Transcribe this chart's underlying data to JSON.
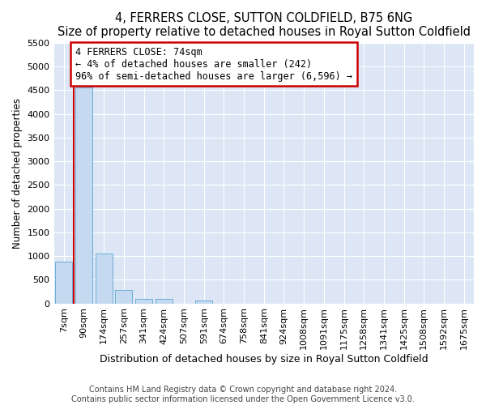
{
  "title": "4, FERRERS CLOSE, SUTTON COLDFIELD, B75 6NG",
  "subtitle": "Size of property relative to detached houses in Royal Sutton Coldfield",
  "xlabel": "Distribution of detached houses by size in Royal Sutton Coldfield",
  "ylabel": "Number of detached properties",
  "categories": [
    "7sqm",
    "90sqm",
    "174sqm",
    "257sqm",
    "341sqm",
    "424sqm",
    "507sqm",
    "591sqm",
    "674sqm",
    "758sqm",
    "841sqm",
    "924sqm",
    "1008sqm",
    "1091sqm",
    "1175sqm",
    "1258sqm",
    "1341sqm",
    "1425sqm",
    "1508sqm",
    "1592sqm",
    "1675sqm"
  ],
  "values": [
    880,
    4560,
    1060,
    290,
    90,
    90,
    0,
    55,
    0,
    0,
    0,
    0,
    0,
    0,
    0,
    0,
    0,
    0,
    0,
    0,
    0
  ],
  "bar_color": "#c5d9f0",
  "bar_edge_color": "#6baed6",
  "property_line_color": "#cc0000",
  "annotation_line1": "4 FERRERS CLOSE: 74sqm",
  "annotation_line2": "← 4% of detached houses are smaller (242)",
  "annotation_line3": "96% of semi-detached houses are larger (6,596) →",
  "annotation_box_color": "#cc0000",
  "ylim": [
    0,
    5500
  ],
  "yticks": [
    0,
    500,
    1000,
    1500,
    2000,
    2500,
    3000,
    3500,
    4000,
    4500,
    5000,
    5500
  ],
  "background_color": "#dce6f5",
  "footer_line1": "Contains HM Land Registry data © Crown copyright and database right 2024.",
  "footer_line2": "Contains public sector information licensed under the Open Government Licence v3.0.",
  "title_fontsize": 10.5,
  "subtitle_fontsize": 9.5,
  "xlabel_fontsize": 9,
  "ylabel_fontsize": 8.5,
  "tick_fontsize": 8,
  "annotation_fontsize": 8.5,
  "footer_fontsize": 7
}
